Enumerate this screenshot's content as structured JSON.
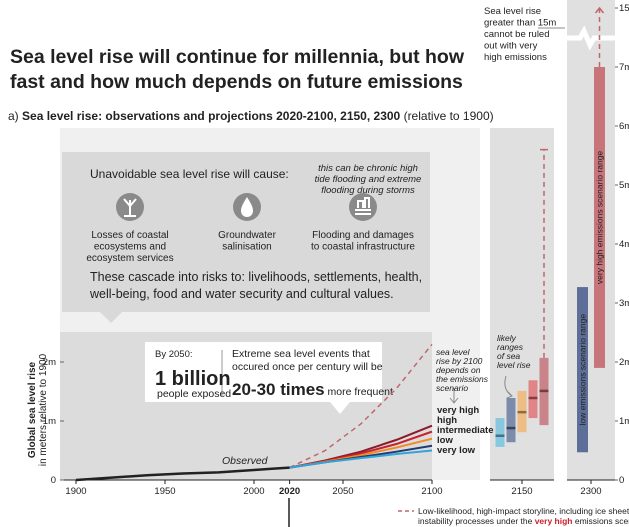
{
  "title": [
    "Sea level rise will continue for millennia, but how",
    "fast and how much depends on future emissions"
  ],
  "subtitle": [
    "a) ",
    "Sea level rise: observations and projections 2020-2100, 2150, 2300",
    " (relative to 1900)"
  ],
  "impacts": {
    "heading": "Unavoidable sea level rise will cause:",
    "note": [
      "this can be chronic high",
      "tide flooding and extreme",
      "flooding during storms"
    ],
    "items": [
      [
        "Losses of coastal",
        "ecosystems and",
        "ecosystem services"
      ],
      [
        "Groundwater",
        "salinisation"
      ],
      [
        "Flooding and damages",
        "to coastal infrastructure"
      ]
    ],
    "cascade": [
      "These cascade into risks to: livelihoods, settlements, health,",
      "well-being, food and water security and cultural values."
    ]
  },
  "callout": {
    "heading": "By 2050:",
    "big": "1 billion",
    "big_sub": "people exposed",
    "text": [
      "Extreme sea level events that",
      "occured once per century will be"
    ],
    "emph": "20-30 times",
    "emph_sub": " more frequent"
  },
  "notes": {
    "scenario": [
      "sea level",
      "rise by 2100",
      "depends on",
      "the emissions",
      "scenario"
    ],
    "likely": [
      "likely",
      "ranges",
      "of sea",
      "level rise"
    ],
    "extreme": [
      "Sea level rise",
      "greater than 15m",
      "cannot be ruled",
      "out with very",
      "high emissions"
    ],
    "storyline": [
      "Low-likelihood, high-impact storyline, including ice sheet",
      "instability processes under the ",
      "very high",
      " emissions scenario"
    ]
  },
  "chart_data": [
    {
      "type": "line",
      "ylabel": [
        "Global sea level rise",
        "in meters relative to 1900"
      ],
      "xlim": [
        1900,
        2100
      ],
      "xticks": [
        1900,
        1950,
        2000,
        2020,
        2050,
        2100
      ],
      "bold_xtick": 2020,
      "ylim": [
        0,
        2.5
      ],
      "yticks": [
        0,
        {
          "value": 1,
          "label": "1m"
        },
        {
          "value": 2,
          "label": "2m"
        }
      ],
      "series": [
        {
          "name": "Observed",
          "color": "#222222",
          "x": [
            1900,
            1920,
            1940,
            1960,
            1980,
            2000,
            2010,
            2020
          ],
          "values": [
            0,
            0.04,
            0.08,
            0.11,
            0.13,
            0.17,
            0.19,
            0.21
          ]
        },
        {
          "name": "very high",
          "color": "#8b1a2b",
          "x": [
            2020,
            2040,
            2060,
            2080,
            2100
          ],
          "values": [
            0.21,
            0.33,
            0.48,
            0.68,
            0.92
          ]
        },
        {
          "name": "high",
          "color": "#c8212d",
          "x": [
            2020,
            2040,
            2060,
            2080,
            2100
          ],
          "values": [
            0.21,
            0.32,
            0.45,
            0.61,
            0.82
          ]
        },
        {
          "name": "intermediate",
          "color": "#f08a24",
          "x": [
            2020,
            2040,
            2060,
            2080,
            2100
          ],
          "values": [
            0.21,
            0.31,
            0.42,
            0.55,
            0.7
          ]
        },
        {
          "name": "low",
          "color": "#1f3b73",
          "x": [
            2020,
            2040,
            2060,
            2080,
            2100
          ],
          "values": [
            0.21,
            0.3,
            0.39,
            0.48,
            0.58
          ]
        },
        {
          "name": "very low",
          "color": "#33a4d8",
          "x": [
            2020,
            2040,
            2060,
            2080,
            2100
          ],
          "values": [
            0.21,
            0.3,
            0.37,
            0.44,
            0.5
          ]
        }
      ],
      "storyline": {
        "color": "#c0666c",
        "x": [
          2020,
          2040,
          2060,
          2080,
          2100
        ],
        "values": [
          0.21,
          0.5,
          0.95,
          1.55,
          2.3
        ]
      }
    },
    {
      "type": "range",
      "categories": [
        "2150"
      ],
      "ylim": [
        0,
        6.5
      ],
      "ranges": [
        {
          "color": "#6bbfe0",
          "low": 0.56,
          "median": 0.75,
          "high": 1.05
        },
        {
          "color": "#5b6f99",
          "low": 0.64,
          "median": 0.88,
          "high": 1.39
        },
        {
          "color": "#f3b266",
          "low": 0.81,
          "median": 1.15,
          "high": 1.51
        },
        {
          "color": "#e0656a",
          "low": 1.05,
          "median": 1.39,
          "high": 1.69
        },
        {
          "color": "#c0666c",
          "low": 0.93,
          "median": 1.51,
          "high": 2.07
        }
      ],
      "storyline": 5.6
    },
    {
      "type": "range",
      "categories": [
        "2300"
      ],
      "ylim": [
        0,
        15
      ],
      "axis_break": [
        7.5,
        14.5
      ],
      "yticks": [
        0,
        {
          "value": 1,
          "label": "1m"
        },
        {
          "value": 2,
          "label": "2m"
        },
        {
          "value": 3,
          "label": "3m"
        },
        {
          "value": 4,
          "label": "4m"
        },
        {
          "value": 5,
          "label": "5m"
        },
        {
          "value": 6,
          "label": "6m"
        },
        {
          "value": 7,
          "label": "7m"
        },
        {
          "value": 15,
          "label": "15m"
        }
      ],
      "ranges": [
        {
          "color": "#5d6f98",
          "low": 0.47,
          "high": 3.27,
          "label": "low emissions scenario range"
        },
        {
          "color": "#c7747a",
          "low": 1.9,
          "high": 7.0,
          "label": "very high emissions scenario range"
        }
      ],
      "storyline": 15
    }
  ]
}
